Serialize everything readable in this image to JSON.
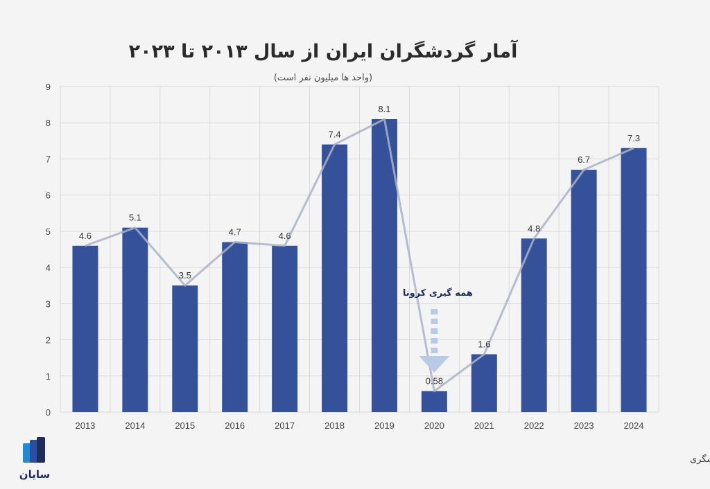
{
  "chart_data": {
    "type": "bar",
    "title": "آمار گردشگران ایران از سال ۲۰۱۳ تا ۲۰۲۳",
    "subtitle": "(واحد ها میلیون نفر است)",
    "categories": [
      "2013",
      "2014",
      "2015",
      "2016",
      "2017",
      "2018",
      "2019",
      "2020",
      "2021",
      "2022",
      "2023",
      "2024"
    ],
    "values": [
      4.6,
      5.1,
      3.5,
      4.7,
      4.6,
      7.4,
      8.1,
      0.58,
      1.6,
      4.8,
      6.7,
      7.3
    ],
    "value_labels": [
      "4.6",
      "5.1",
      "3.5",
      "4.7",
      "4.6",
      "7.4",
      "8.1",
      "0.58",
      "1.6",
      "4.8",
      "6.7",
      "7.3"
    ],
    "y_ticks": [
      "0",
      "1",
      "2",
      "3",
      "4",
      "5",
      "6",
      "7",
      "8",
      "9"
    ],
    "ylim": [
      0,
      9
    ],
    "grid": true,
    "overlay_line": true,
    "annotation": {
      "text": "همه گیری کرونا",
      "category": "2020"
    },
    "colors": {
      "bar": "#34519a",
      "line": "#a9b2c6",
      "arrow": "#b7cbe6",
      "grid": "#d9d9d9"
    }
  },
  "source": "منبع: وزارت میراث فرهنگی، صنایع دستی و گردشگری",
  "logo": {
    "text": "سایان",
    "icon": "bars-logo-icon"
  }
}
